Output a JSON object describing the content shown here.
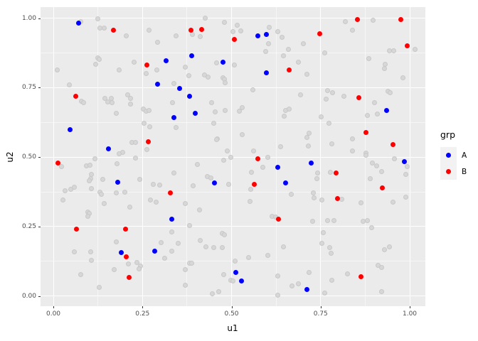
{
  "chart_data": {
    "type": "scatter",
    "title": "",
    "xlabel": "u1",
    "ylabel": "u2",
    "x_ticks": [
      "0.00",
      "0.25",
      "0.50",
      "0.75",
      "1.00"
    ],
    "x_tick_values": [
      0,
      0.25,
      0.5,
      0.75,
      1.0
    ],
    "y_ticks": [
      "0.00",
      "0.25",
      "0.50",
      "0.75",
      "1.00"
    ],
    "y_tick_values": [
      0,
      0.25,
      0.5,
      0.75,
      1.0
    ],
    "x_minor_values": [
      0.125,
      0.375,
      0.625,
      0.875
    ],
    "y_minor_values": [
      0.125,
      0.375,
      0.625,
      0.875
    ],
    "xlim": [
      -0.036,
      1.044
    ],
    "ylim": [
      -0.026,
      1.04
    ],
    "grid": "major+minor",
    "panel_bg": "#EBEBEB",
    "grid_color": "#FFFFFF",
    "tick_label_color": "#4D4D4D",
    "legend": {
      "title": "grp",
      "position": "right",
      "entries": [
        {
          "label": "A",
          "color": "#0000FF"
        },
        {
          "label": "B",
          "color": "#FF0000"
        }
      ]
    },
    "series": [
      {
        "name": "A",
        "color": "#0000FF",
        "points": [
          [
            0.07,
            0.982
          ],
          [
            0.389,
            0.866
          ],
          [
            0.317,
            0.848
          ],
          [
            0.477,
            0.843
          ],
          [
            0.292,
            0.763
          ],
          [
            0.354,
            0.748
          ],
          [
            0.383,
            0.72
          ],
          [
            0.398,
            0.658
          ],
          [
            0.339,
            0.642
          ],
          [
            0.047,
            0.598
          ],
          [
            0.155,
            0.529
          ],
          [
            0.574,
            0.937
          ],
          [
            0.597,
            0.941
          ],
          [
            0.597,
            0.803
          ],
          [
            0.936,
            0.667
          ],
          [
            0.985,
            0.484
          ],
          [
            0.724,
            0.478
          ],
          [
            0.18,
            0.409
          ],
          [
            0.453,
            0.407
          ],
          [
            0.332,
            0.278
          ],
          [
            0.19,
            0.157
          ],
          [
            0.285,
            0.162
          ],
          [
            0.511,
            0.086
          ],
          [
            0.527,
            0.053
          ],
          [
            0.651,
            0.407
          ],
          [
            0.711,
            0.024
          ],
          [
            0.629,
            0.463
          ]
        ]
      },
      {
        "name": "B",
        "color": "#FF0000",
        "points": [
          [
            0.168,
            0.958
          ],
          [
            0.387,
            0.957
          ],
          [
            0.416,
            0.959
          ],
          [
            0.508,
            0.923
          ],
          [
            0.263,
            0.831
          ],
          [
            0.062,
            0.718
          ],
          [
            0.267,
            0.555
          ],
          [
            0.012,
            0.478
          ],
          [
            0.854,
            0.995
          ],
          [
            0.975,
            0.995
          ],
          [
            0.747,
            0.944
          ],
          [
            0.993,
            0.9
          ],
          [
            0.661,
            0.815
          ],
          [
            0.857,
            0.715
          ],
          [
            0.877,
            0.59
          ],
          [
            0.953,
            0.545
          ],
          [
            0.573,
            0.495
          ],
          [
            0.064,
            0.241
          ],
          [
            0.202,
            0.241
          ],
          [
            0.329,
            0.372
          ],
          [
            0.205,
            0.142
          ],
          [
            0.213,
            0.066
          ],
          [
            0.563,
            0.403
          ],
          [
            0.794,
            0.443
          ],
          [
            0.924,
            0.39
          ],
          [
            0.798,
            0.35
          ],
          [
            0.864,
            0.07
          ],
          [
            0.631,
            0.278
          ]
        ]
      },
      {
        "name": "background",
        "color": "#D7D7D7",
        "points": [
          [
            0.076,
            0.989
          ],
          [
            0.124,
            0.999
          ],
          [
            0.13,
            0.964
          ],
          [
            0.142,
            0.964
          ],
          [
            0.205,
            0.936
          ],
          [
            0.269,
            0.958
          ],
          [
            0.293,
            0.914
          ],
          [
            0.124,
            0.857
          ],
          [
            0.129,
            0.851
          ],
          [
            0.119,
            0.834
          ],
          [
            0.227,
            0.842
          ],
          [
            0.011,
            0.813
          ],
          [
            0.184,
            0.814
          ],
          [
            0.26,
            0.802
          ],
          [
            0.29,
            0.814
          ],
          [
            0.044,
            0.761
          ],
          [
            0.079,
            0.702
          ],
          [
            0.084,
            0.696
          ],
          [
            0.145,
            0.712
          ],
          [
            0.162,
            0.712
          ],
          [
            0.164,
            0.695
          ],
          [
            0.152,
            0.698
          ],
          [
            0.208,
            0.725
          ],
          [
            0.217,
            0.712
          ],
          [
            0.216,
            0.691
          ],
          [
            0.177,
            0.657
          ],
          [
            0.253,
            0.672
          ],
          [
            0.26,
            0.665
          ],
          [
            0.269,
            0.668
          ],
          [
            0.255,
            0.621
          ],
          [
            0.27,
            0.608
          ],
          [
            0.22,
            0.554
          ],
          [
            0.23,
            0.552
          ],
          [
            0.194,
            0.518
          ],
          [
            0.184,
            0.511
          ],
          [
            0.262,
            0.528
          ],
          [
            0.427,
            1.0
          ],
          [
            0.481,
            0.985
          ],
          [
            0.345,
            0.936
          ],
          [
            0.39,
            0.942
          ],
          [
            0.412,
            0.935
          ],
          [
            0.516,
            0.974
          ],
          [
            0.526,
            0.955
          ],
          [
            0.503,
            0.953
          ],
          [
            0.606,
            0.966
          ],
          [
            0.629,
            0.951
          ],
          [
            0.641,
            0.931
          ],
          [
            0.603,
            0.908
          ],
          [
            0.596,
            0.88
          ],
          [
            0.659,
            0.889
          ],
          [
            0.645,
            0.866
          ],
          [
            0.458,
            0.84
          ],
          [
            0.508,
            0.831
          ],
          [
            0.37,
            0.823
          ],
          [
            0.381,
            0.793
          ],
          [
            0.425,
            0.795
          ],
          [
            0.435,
            0.787
          ],
          [
            0.476,
            0.786
          ],
          [
            0.481,
            0.78
          ],
          [
            0.483,
            0.767
          ],
          [
            0.338,
            0.766
          ],
          [
            0.56,
            0.742
          ],
          [
            0.335,
            0.697
          ],
          [
            0.445,
            0.695
          ],
          [
            0.53,
            0.678
          ],
          [
            0.521,
            0.665
          ],
          [
            0.454,
            0.663
          ],
          [
            0.483,
            0.668
          ],
          [
            0.651,
            0.667
          ],
          [
            0.661,
            0.674
          ],
          [
            0.647,
            0.648
          ],
          [
            0.45,
            0.623
          ],
          [
            0.345,
            0.607
          ],
          [
            0.46,
            0.566
          ],
          [
            0.53,
            0.58
          ],
          [
            0.488,
            0.522
          ],
          [
            0.561,
            0.523
          ],
          [
            0.819,
            0.989
          ],
          [
            0.897,
            0.993
          ],
          [
            0.84,
            0.958
          ],
          [
            0.701,
            0.908
          ],
          [
            0.943,
            0.882
          ],
          [
            0.955,
            0.884
          ],
          [
            0.762,
            0.874
          ],
          [
            0.688,
            0.842
          ],
          [
            0.886,
            0.854
          ],
          [
            0.932,
            0.834
          ],
          [
            0.929,
            0.818
          ],
          [
            0.711,
            0.799
          ],
          [
            0.981,
            0.786
          ],
          [
            1.015,
            0.889
          ],
          [
            0.769,
            0.74
          ],
          [
            0.784,
            0.733
          ],
          [
            0.693,
            0.725
          ],
          [
            0.766,
            0.708
          ],
          [
            0.816,
            0.718
          ],
          [
            0.939,
            0.738
          ],
          [
            0.946,
            0.732
          ],
          [
            0.902,
            0.695
          ],
          [
            0.752,
            0.646
          ],
          [
            0.882,
            0.65
          ],
          [
            0.91,
            0.655
          ],
          [
            0.774,
            0.623
          ],
          [
            0.718,
            0.585
          ],
          [
            0.712,
            0.57
          ],
          [
            0.715,
            0.539
          ],
          [
            0.781,
            0.547
          ],
          [
            0.839,
            0.567
          ],
          [
            0.84,
            0.523
          ],
          [
            0.878,
            0.514
          ],
          [
            0.023,
            0.467
          ],
          [
            0.117,
            0.495
          ],
          [
            0.092,
            0.469
          ],
          [
            0.102,
            0.471
          ],
          [
            0.178,
            0.475
          ],
          [
            0.23,
            0.496
          ],
          [
            0.107,
            0.437
          ],
          [
            0.105,
            0.422
          ],
          [
            0.1,
            0.415
          ],
          [
            0.138,
            0.419
          ],
          [
            0.242,
            0.42
          ],
          [
            0.033,
            0.38
          ],
          [
            0.049,
            0.385
          ],
          [
            0.059,
            0.392
          ],
          [
            0.106,
            0.386
          ],
          [
            0.13,
            0.373
          ],
          [
            0.134,
            0.367
          ],
          [
            0.176,
            0.371
          ],
          [
            0.2,
            0.375
          ],
          [
            0.026,
            0.347
          ],
          [
            0.142,
            0.333
          ],
          [
            0.214,
            0.32
          ],
          [
            0.096,
            0.303
          ],
          [
            0.1,
            0.296
          ],
          [
            0.097,
            0.286
          ],
          [
            0.28,
            0.401
          ],
          [
            0.298,
            0.399
          ],
          [
            0.273,
            0.347
          ],
          [
            0.289,
            0.339
          ],
          [
            0.177,
            0.196
          ],
          [
            0.058,
            0.16
          ],
          [
            0.105,
            0.158
          ],
          [
            0.106,
            0.128
          ],
          [
            0.077,
            0.077
          ],
          [
            0.17,
            0.096
          ],
          [
            0.129,
            0.032
          ],
          [
            0.234,
            0.121
          ],
          [
            0.244,
            0.109
          ],
          [
            0.24,
            0.098
          ],
          [
            0.211,
            0.115
          ],
          [
            0.303,
            0.192
          ],
          [
            0.313,
            0.137
          ],
          [
            0.478,
            0.49
          ],
          [
            0.499,
            0.499
          ],
          [
            0.405,
            0.473
          ],
          [
            0.338,
            0.442
          ],
          [
            0.555,
            0.445
          ],
          [
            0.588,
            0.464
          ],
          [
            0.602,
            0.5
          ],
          [
            0.432,
            0.431
          ],
          [
            0.443,
            0.426
          ],
          [
            0.392,
            0.396
          ],
          [
            0.492,
            0.401
          ],
          [
            0.554,
            0.385
          ],
          [
            0.668,
            0.367
          ],
          [
            0.552,
            0.341
          ],
          [
            0.37,
            0.333
          ],
          [
            0.41,
            0.311
          ],
          [
            0.614,
            0.288
          ],
          [
            0.624,
            0.284
          ],
          [
            0.382,
            0.253
          ],
          [
            0.332,
            0.23
          ],
          [
            0.35,
            0.189
          ],
          [
            0.333,
            0.162
          ],
          [
            0.475,
            0.226
          ],
          [
            0.48,
            0.22
          ],
          [
            0.413,
            0.201
          ],
          [
            0.428,
            0.177
          ],
          [
            0.45,
            0.175
          ],
          [
            0.475,
            0.175
          ],
          [
            0.645,
            0.178
          ],
          [
            0.601,
            0.147
          ],
          [
            0.509,
            0.125
          ],
          [
            0.547,
            0.139
          ],
          [
            0.382,
            0.119
          ],
          [
            0.388,
            0.118
          ],
          [
            0.37,
            0.096
          ],
          [
            0.478,
            0.076
          ],
          [
            0.498,
            0.058
          ],
          [
            0.503,
            0.054
          ],
          [
            0.371,
            0.038
          ],
          [
            0.446,
            0.008
          ],
          [
            0.464,
            0.015
          ],
          [
            0.629,
            0.073
          ],
          [
            0.63,
            0.002
          ],
          [
            0.669,
            0.037
          ],
          [
            0.637,
            0.537
          ],
          [
            0.458,
            0.563
          ],
          [
            0.877,
            0.507
          ],
          [
            0.957,
            0.495
          ],
          [
            0.896,
            0.478
          ],
          [
            0.908,
            0.469
          ],
          [
            0.921,
            0.447
          ],
          [
            0.741,
            0.442
          ],
          [
            0.739,
            0.422
          ],
          [
            0.778,
            0.445
          ],
          [
            0.99,
            0.439
          ],
          [
            0.889,
            0.422
          ],
          [
            0.729,
            0.371
          ],
          [
            0.731,
            0.354
          ],
          [
            0.754,
            0.345
          ],
          [
            0.809,
            0.348
          ],
          [
            0.864,
            0.335
          ],
          [
            0.954,
            0.337
          ],
          [
            0.989,
            0.357
          ],
          [
            0.728,
            0.269
          ],
          [
            0.769,
            0.271
          ],
          [
            0.787,
            0.271
          ],
          [
            0.869,
            0.269
          ],
          [
            0.882,
            0.271
          ],
          [
            0.894,
            0.246
          ],
          [
            0.757,
            0.229
          ],
          [
            0.754,
            0.189
          ],
          [
            0.776,
            0.175
          ],
          [
            0.779,
            0.155
          ],
          [
            0.929,
            0.166
          ],
          [
            0.944,
            0.178
          ],
          [
            0.911,
            0.111
          ],
          [
            0.922,
            0.104
          ],
          [
            0.717,
            0.085
          ],
          [
            0.688,
            0.043
          ],
          [
            0.826,
            0.081
          ],
          [
            0.782,
            0.058
          ],
          [
            0.762,
            0.01
          ],
          [
            0.922,
            0.015
          ],
          [
            0.993,
            0.465
          ]
        ]
      }
    ]
  }
}
